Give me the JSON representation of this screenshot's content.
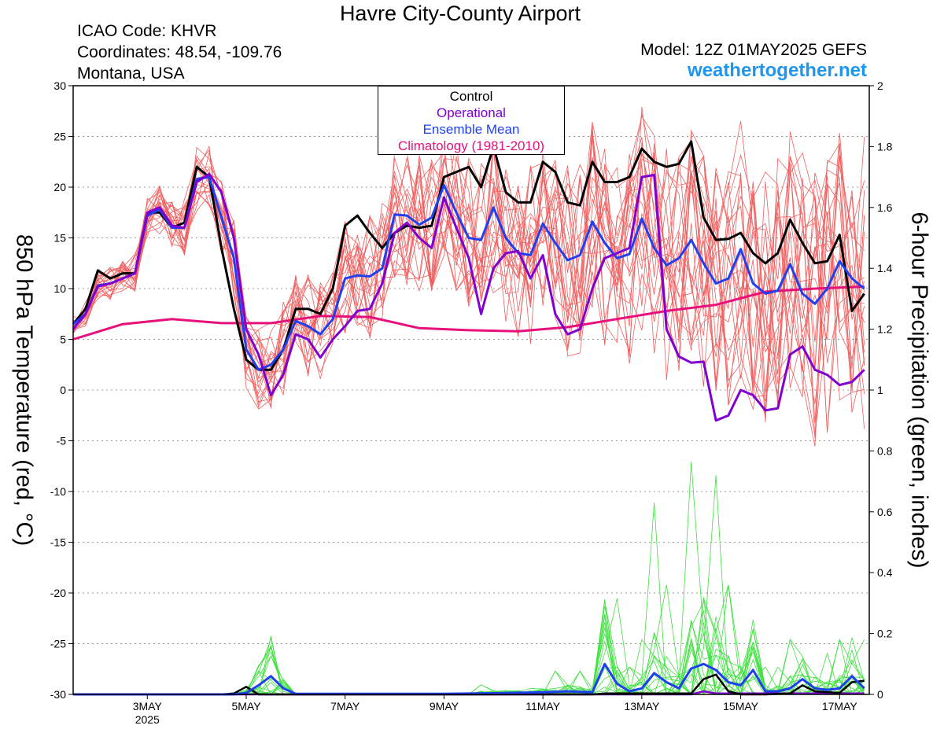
{
  "header": {
    "title": "Havre City-County Airport",
    "icao": "ICAO Code: KHVR",
    "coordinates": "Coordinates: 48.54, -109.76",
    "region": "Montana, USA",
    "model": "Model: 12Z 01MAY2025 GEFS",
    "site": "weathertogether.net"
  },
  "colors": {
    "member_temp": "#f06060",
    "member_precip": "#40e040",
    "control": "#000000",
    "operational": "#8000d0",
    "ensemble_mean": "#2040f0",
    "climatology": "#e8107a",
    "site": "#1e96f0"
  },
  "chart_data": {
    "type": "line",
    "ylabel_left": "850 hPa Temperature (red, °C)",
    "ylabel_right": "6-hour Precipitation (green, inches)",
    "ylim_left": [
      -30,
      30
    ],
    "ylim_right": [
      0,
      2
    ],
    "yticks_left": [
      "30",
      "25",
      "20",
      "15",
      "10",
      "5",
      "0",
      "-5",
      "-10",
      "-15",
      "-20",
      "-25",
      "-30"
    ],
    "yticks_right": [
      "2",
      "1.8",
      "1.6",
      "1.4",
      "1.2",
      "1",
      "0.8",
      "0.6",
      "0.4",
      "0.2",
      "0"
    ],
    "xlim_days": [
      1.5,
      17.6
    ],
    "xticks": [
      {
        "day": 3,
        "label": "3MAY",
        "sub": "2025"
      },
      {
        "day": 5,
        "label": "5MAY",
        "sub": ""
      },
      {
        "day": 7,
        "label": "7MAY",
        "sub": ""
      },
      {
        "day": 9,
        "label": "9MAY",
        "sub": ""
      },
      {
        "day": 11,
        "label": "11MAY",
        "sub": ""
      },
      {
        "day": 13,
        "label": "13MAY",
        "sub": ""
      },
      {
        "day": 15,
        "label": "15MAY",
        "sub": ""
      },
      {
        "day": 17,
        "label": "17MAY",
        "sub": ""
      }
    ],
    "grid": "horizontal dotted",
    "legend_position": "top-center",
    "legend": [
      "Control",
      "Operational",
      "Ensemble Mean",
      "Climatology (1981-2010)"
    ],
    "series": [
      {
        "name": "Control",
        "axis": "left",
        "points": [
          [
            1.5,
            6.5
          ],
          [
            1.75,
            8
          ],
          [
            2,
            11.8
          ],
          [
            2.25,
            11
          ],
          [
            2.5,
            11.5
          ],
          [
            2.75,
            11.5
          ],
          [
            3,
            17.5
          ],
          [
            3.25,
            17.5
          ],
          [
            3.5,
            16
          ],
          [
            3.75,
            16.5
          ],
          [
            4,
            22
          ],
          [
            4.25,
            21
          ],
          [
            4.5,
            14
          ],
          [
            4.75,
            8
          ],
          [
            5,
            3
          ],
          [
            5.25,
            2
          ],
          [
            5.5,
            2
          ],
          [
            5.75,
            4
          ],
          [
            6,
            8
          ],
          [
            6.25,
            8
          ],
          [
            6.5,
            7.5
          ],
          [
            6.75,
            10
          ],
          [
            7,
            16.2
          ],
          [
            7.25,
            17.2
          ],
          [
            7.5,
            15.5
          ],
          [
            7.75,
            14
          ],
          [
            8,
            15.5
          ],
          [
            8.25,
            16.2
          ],
          [
            8.5,
            16
          ],
          [
            8.75,
            16.2
          ],
          [
            9,
            21
          ],
          [
            9.25,
            21.5
          ],
          [
            9.5,
            22
          ],
          [
            9.75,
            20
          ],
          [
            10,
            24
          ],
          [
            10.25,
            19.5
          ],
          [
            10.5,
            18.5
          ],
          [
            10.75,
            18.5
          ],
          [
            11,
            22.5
          ],
          [
            11.25,
            21.5
          ],
          [
            11.5,
            18.5
          ],
          [
            11.75,
            18.2
          ],
          [
            12,
            22.5
          ],
          [
            12.25,
            20.5
          ],
          [
            12.5,
            20.5
          ],
          [
            12.75,
            21
          ],
          [
            13,
            23.8
          ],
          [
            13.25,
            22.5
          ],
          [
            13.5,
            22
          ],
          [
            13.75,
            22.3
          ],
          [
            14,
            24.5
          ],
          [
            14.25,
            17
          ],
          [
            14.5,
            14.8
          ],
          [
            14.75,
            14.9
          ],
          [
            15,
            15.5
          ],
          [
            15.25,
            13.5
          ],
          [
            15.5,
            12.5
          ],
          [
            15.75,
            13.5
          ],
          [
            16,
            16.8
          ],
          [
            16.25,
            14.5
          ],
          [
            16.5,
            12.5
          ],
          [
            16.75,
            12.7
          ],
          [
            17,
            15.3
          ],
          [
            17.25,
            7.8
          ],
          [
            17.5,
            9.5
          ]
        ]
      },
      {
        "name": "Operational",
        "axis": "left",
        "points": [
          [
            1.5,
            6
          ],
          [
            1.75,
            7.5
          ],
          [
            2,
            10.2
          ],
          [
            2.25,
            10.5
          ],
          [
            2.5,
            11
          ],
          [
            2.75,
            11.5
          ],
          [
            3,
            17.5
          ],
          [
            3.25,
            18
          ],
          [
            3.5,
            16.2
          ],
          [
            3.75,
            16
          ],
          [
            4,
            20.5
          ],
          [
            4.25,
            21.3
          ],
          [
            4.5,
            19.5
          ],
          [
            4.75,
            15
          ],
          [
            5,
            6
          ],
          [
            5.25,
            3.5
          ],
          [
            5.5,
            -0.5
          ],
          [
            5.75,
            1.5
          ],
          [
            6,
            5.5
          ],
          [
            6.25,
            5
          ],
          [
            6.5,
            3.2
          ],
          [
            6.75,
            5
          ],
          [
            7,
            6.3
          ],
          [
            7.25,
            7.8
          ],
          [
            7.5,
            8
          ],
          [
            7.75,
            10.5
          ],
          [
            8,
            15.5
          ],
          [
            8.25,
            16.5
          ],
          [
            8.5,
            15
          ],
          [
            8.75,
            14
          ],
          [
            9,
            19
          ],
          [
            9.25,
            16
          ],
          [
            9.5,
            13
          ],
          [
            9.75,
            7.5
          ],
          [
            10,
            12
          ],
          [
            10.25,
            13.5
          ],
          [
            10.5,
            13.7
          ],
          [
            10.75,
            11
          ],
          [
            11,
            13.3
          ],
          [
            11.25,
            7.5
          ],
          [
            11.5,
            5.5
          ],
          [
            11.75,
            6
          ],
          [
            12,
            10
          ],
          [
            12.25,
            13
          ],
          [
            12.5,
            13.5
          ],
          [
            12.75,
            14
          ],
          [
            13,
            21
          ],
          [
            13.25,
            21.2
          ],
          [
            13.5,
            6
          ],
          [
            13.75,
            3.3
          ],
          [
            14,
            2.7
          ],
          [
            14.25,
            2.8
          ],
          [
            14.5,
            -3
          ],
          [
            14.75,
            -2.5
          ],
          [
            15,
            0
          ],
          [
            15.25,
            -0.5
          ],
          [
            15.5,
            -2
          ],
          [
            15.75,
            -1.8
          ],
          [
            16,
            3.5
          ],
          [
            16.25,
            4.3
          ],
          [
            16.5,
            2
          ],
          [
            16.75,
            1.5
          ],
          [
            17,
            0.5
          ],
          [
            17.25,
            0.8
          ],
          [
            17.5,
            2
          ]
        ]
      },
      {
        "name": "Ensemble Mean",
        "axis": "left",
        "points": [
          [
            1.5,
            6.5
          ],
          [
            1.75,
            7.5
          ],
          [
            2,
            10.3
          ],
          [
            2.25,
            10.5
          ],
          [
            2.5,
            11
          ],
          [
            2.75,
            11.5
          ],
          [
            3,
            17.2
          ],
          [
            3.25,
            17.8
          ],
          [
            3.5,
            16
          ],
          [
            3.75,
            16
          ],
          [
            4,
            20.8
          ],
          [
            4.25,
            21
          ],
          [
            4.5,
            17
          ],
          [
            4.75,
            13
          ],
          [
            5,
            4
          ],
          [
            5.25,
            2
          ],
          [
            5.5,
            2.5
          ],
          [
            5.75,
            4
          ],
          [
            6,
            6.8
          ],
          [
            6.25,
            6.3
          ],
          [
            6.5,
            5.5
          ],
          [
            6.75,
            7
          ],
          [
            7,
            11
          ],
          [
            7.25,
            11.3
          ],
          [
            7.5,
            11.2
          ],
          [
            7.75,
            12
          ],
          [
            8,
            17.3
          ],
          [
            8.25,
            17.2
          ],
          [
            8.5,
            16.3
          ],
          [
            8.75,
            17
          ],
          [
            9,
            20.2
          ],
          [
            9.25,
            17.5
          ],
          [
            9.5,
            15
          ],
          [
            9.75,
            14.8
          ],
          [
            10,
            18
          ],
          [
            10.25,
            15
          ],
          [
            10.5,
            13.5
          ],
          [
            10.75,
            13.3
          ],
          [
            11,
            16.4
          ],
          [
            11.25,
            14.5
          ],
          [
            11.5,
            12.8
          ],
          [
            11.75,
            13.3
          ],
          [
            12,
            16.6
          ],
          [
            12.25,
            14.5
          ],
          [
            12.5,
            13
          ],
          [
            12.75,
            13.4
          ],
          [
            13,
            16.9
          ],
          [
            13.25,
            14
          ],
          [
            13.5,
            12.3
          ],
          [
            13.75,
            13
          ],
          [
            14,
            14.8
          ],
          [
            14.25,
            12.5
          ],
          [
            14.5,
            10.5
          ],
          [
            14.75,
            11
          ],
          [
            15,
            13.9
          ],
          [
            15.25,
            10.5
          ],
          [
            15.5,
            9.5
          ],
          [
            15.75,
            9.8
          ],
          [
            16,
            12.4
          ],
          [
            16.25,
            9.5
          ],
          [
            16.5,
            8.5
          ],
          [
            16.75,
            10
          ],
          [
            17,
            12.7
          ],
          [
            17.25,
            11
          ],
          [
            17.5,
            10
          ]
        ]
      },
      {
        "name": "Climatology (1981-2010)",
        "axis": "left",
        "points": [
          [
            1.5,
            5
          ],
          [
            2.5,
            6.5
          ],
          [
            3.5,
            7
          ],
          [
            4.5,
            6.6
          ],
          [
            5.5,
            6.6
          ],
          [
            6.5,
            7.3
          ],
          [
            7.5,
            7.2
          ],
          [
            8.5,
            6.1
          ],
          [
            9.5,
            5.9
          ],
          [
            10.5,
            5.8
          ],
          [
            11.5,
            6.2
          ],
          [
            12.5,
            7
          ],
          [
            13.5,
            7.8
          ],
          [
            14.5,
            8.4
          ],
          [
            15.5,
            9.7
          ],
          [
            16.5,
            10
          ],
          [
            17.5,
            10.2
          ]
        ]
      },
      {
        "name": "Control precipitation",
        "axis": "right",
        "points": [
          [
            1.5,
            0
          ],
          [
            4.5,
            0
          ],
          [
            4.75,
            0.003
          ],
          [
            5,
            0.025
          ],
          [
            5.25,
            0
          ],
          [
            12,
            0
          ],
          [
            12.25,
            0.003
          ],
          [
            14,
            0.003
          ],
          [
            14.25,
            0.05
          ],
          [
            14.5,
            0.065
          ],
          [
            14.75,
            0.01
          ],
          [
            15,
            0
          ],
          [
            15.5,
            0
          ],
          [
            16,
            0.003
          ],
          [
            16.25,
            0.03
          ],
          [
            16.5,
            0.01
          ],
          [
            17,
            0.005
          ],
          [
            17.25,
            0.04
          ],
          [
            17.5,
            0.045
          ]
        ]
      },
      {
        "name": "Operational precipitation",
        "axis": "right",
        "points": [
          [
            1.5,
            0
          ],
          [
            14,
            0
          ],
          [
            14.25,
            0.01
          ],
          [
            14.5,
            0.003
          ],
          [
            17.5,
            0.003
          ]
        ]
      },
      {
        "name": "Ensemble Mean precipitation",
        "axis": "right",
        "points": [
          [
            1.5,
            0
          ],
          [
            4.75,
            0
          ],
          [
            5,
            0.005
          ],
          [
            5.25,
            0.03
          ],
          [
            5.5,
            0.06
          ],
          [
            5.75,
            0.02
          ],
          [
            6,
            0.002
          ],
          [
            9,
            0.002
          ],
          [
            10,
            0.004
          ],
          [
            11,
            0.007
          ],
          [
            11.5,
            0.01
          ],
          [
            12,
            0.007
          ],
          [
            12.25,
            0.1
          ],
          [
            12.5,
            0.035
          ],
          [
            12.75,
            0.01
          ],
          [
            13,
            0.02
          ],
          [
            13.25,
            0.07
          ],
          [
            13.5,
            0.04
          ],
          [
            13.75,
            0.02
          ],
          [
            14,
            0.085
          ],
          [
            14.25,
            0.1
          ],
          [
            14.5,
            0.08
          ],
          [
            14.75,
            0.04
          ],
          [
            15,
            0.03
          ],
          [
            15.25,
            0.08
          ],
          [
            15.5,
            0.01
          ],
          [
            15.75,
            0.01
          ],
          [
            16,
            0.02
          ],
          [
            16.25,
            0.05
          ],
          [
            16.5,
            0.02
          ],
          [
            16.75,
            0.015
          ],
          [
            17,
            0.02
          ],
          [
            17.25,
            0.06
          ],
          [
            17.5,
            0.02
          ]
        ]
      }
    ]
  }
}
